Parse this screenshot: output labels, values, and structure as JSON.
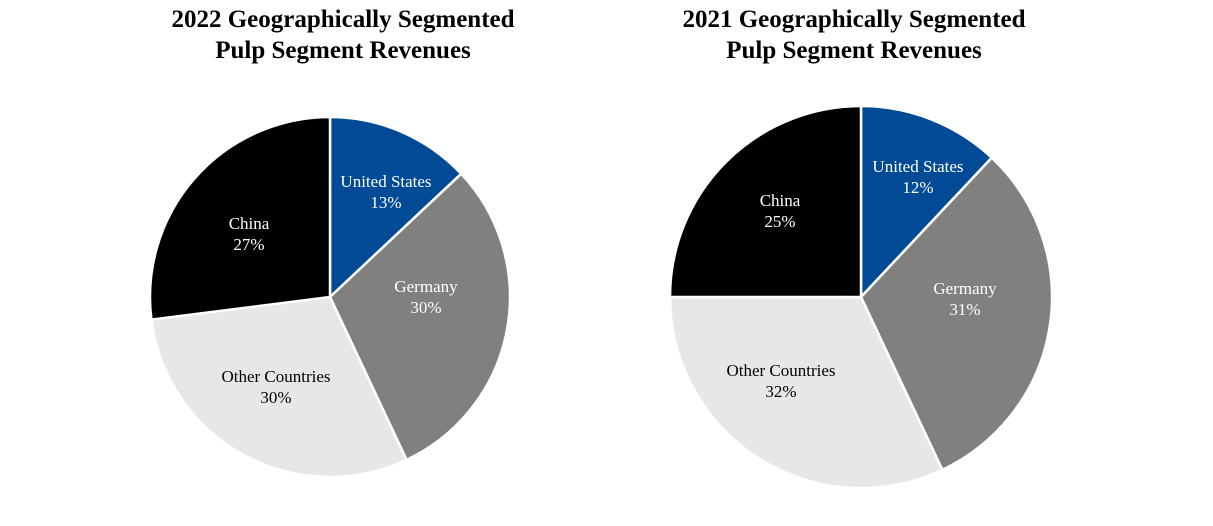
{
  "colors": {
    "United States": "#004a96",
    "Germany": "#808080",
    "Other Countries": "#e6e7e9",
    "China": "#000000"
  },
  "label_colors": {
    "United States": "#ffffff",
    "Germany": "#ffffff",
    "Other Countries": "#000000",
    "China": "#ffffff"
  },
  "chart_data": [
    {
      "type": "pie",
      "title": "2022 Geographically Segmented Pulp Segment Revenues",
      "title_lines": [
        "2022 Geographically Segmented",
        "Pulp Segment Revenues"
      ],
      "slices": [
        {
          "label": "United States",
          "value": 13,
          "value_label": "13%"
        },
        {
          "label": "Germany",
          "value": 30,
          "value_label": "30%"
        },
        {
          "label": "Other Countries",
          "value": 30,
          "value_label": "30%"
        },
        {
          "label": "China",
          "value": 27,
          "value_label": "27%"
        }
      ],
      "start": "12 o'clock",
      "direction": "clockwise",
      "legend": "none (labels on slices)"
    },
    {
      "type": "pie",
      "title": "2021 Geographically Segmented Pulp Segment Revenues",
      "title_lines": [
        "2021 Geographically Segmented",
        "Pulp Segment Revenues"
      ],
      "slices": [
        {
          "label": "United States",
          "value": 12,
          "value_label": "12%"
        },
        {
          "label": "Germany",
          "value": 31,
          "value_label": "31%"
        },
        {
          "label": "Other Countries",
          "value": 32,
          "value_label": "32%"
        },
        {
          "label": "China",
          "value": 25,
          "value_label": "25%"
        }
      ],
      "start": "12 o'clock",
      "direction": "clockwise",
      "legend": "none (labels on slices)"
    }
  ]
}
